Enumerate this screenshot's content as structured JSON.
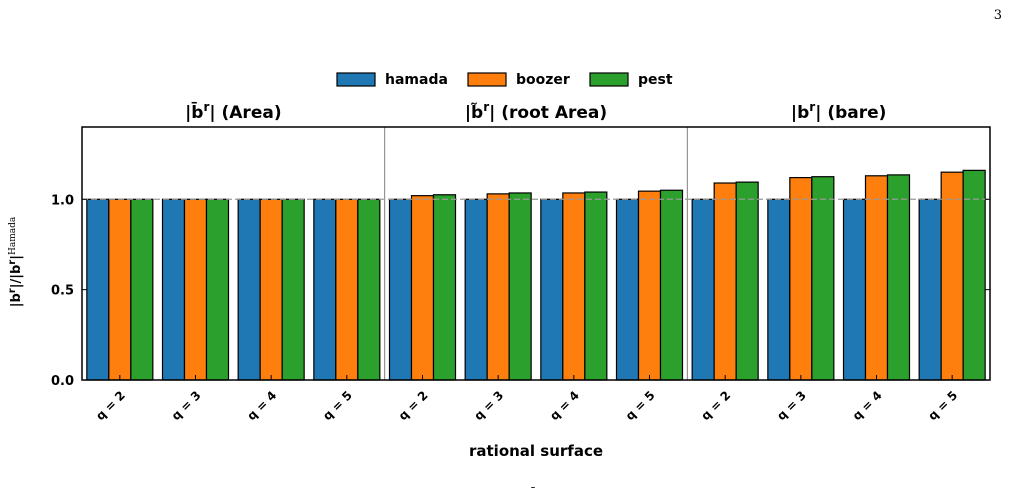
{
  "page": {
    "number": "3"
  },
  "chart_data": {
    "type": "bar",
    "xlabel": "rational surface",
    "ylabel_main": "|b",
    "ylabel_sup1": "r",
    "ylabel_mid": "|/|b",
    "ylabel_sup2": "r",
    "ylabel_end": "|",
    "ylabel_sup3": "Hamada",
    "ylim": [
      0,
      1.4
    ],
    "yticks": [
      "0.0",
      "0.5",
      "1.0"
    ],
    "ytick_values": [
      0.0,
      0.5,
      1.0
    ],
    "reference_line": 1.0,
    "legend": {
      "placement": "top-center",
      "entries": [
        "hamada",
        "boozer",
        "pest"
      ]
    },
    "colors": {
      "hamada": "#1f77b4",
      "boozer": "#ff7f0e",
      "pest": "#2ca02c"
    },
    "panels": [
      {
        "title_pre": "|b",
        "title_accent": "̄",
        "title_sup": "r",
        "title_post": "| (Area)",
        "categories": [
          "q = 2",
          "q = 3",
          "q = 4",
          "q = 5"
        ],
        "series": [
          {
            "name": "hamada",
            "values": [
              1.0,
              1.0,
              1.0,
              1.0
            ]
          },
          {
            "name": "boozer",
            "values": [
              1.0,
              1.0,
              1.0,
              1.0
            ]
          },
          {
            "name": "pest",
            "values": [
              1.0,
              1.0,
              1.0,
              1.0
            ]
          }
        ]
      },
      {
        "title_pre": "|b",
        "title_accent": "̃",
        "title_sup": "r",
        "title_post": "| (root Area)",
        "categories": [
          "q = 2",
          "q = 3",
          "q = 4",
          "q = 5"
        ],
        "series": [
          {
            "name": "hamada",
            "values": [
              1.0,
              1.0,
              1.0,
              1.0
            ]
          },
          {
            "name": "boozer",
            "values": [
              1.02,
              1.03,
              1.035,
              1.045
            ]
          },
          {
            "name": "pest",
            "values": [
              1.025,
              1.035,
              1.04,
              1.05
            ]
          }
        ]
      },
      {
        "title_pre": "|b",
        "title_accent": "",
        "title_sup": "r",
        "title_post": "| (bare)",
        "categories": [
          "q = 2",
          "q = 3",
          "q = 4",
          "q = 5"
        ],
        "series": [
          {
            "name": "hamada",
            "values": [
              1.0,
              1.0,
              1.0,
              1.0
            ]
          },
          {
            "name": "boozer",
            "values": [
              1.09,
              1.12,
              1.13,
              1.15
            ]
          },
          {
            "name": "pest",
            "values": [
              1.095,
              1.125,
              1.135,
              1.16
            ]
          }
        ]
      }
    ],
    "footer_mark": "̄"
  }
}
